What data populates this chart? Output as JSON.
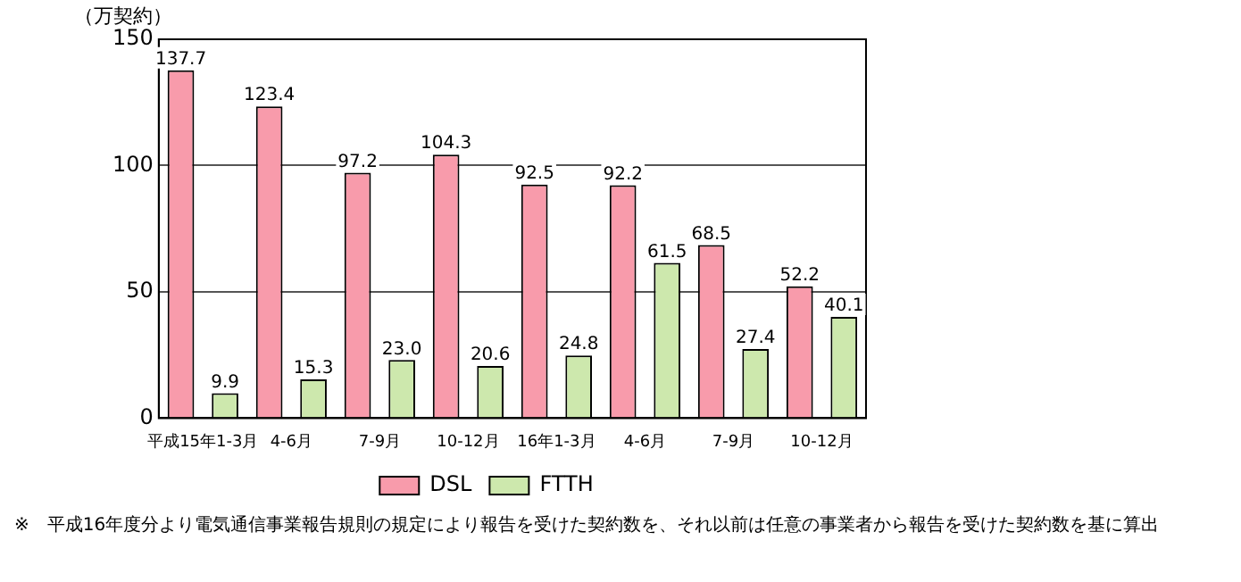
{
  "chart_data": {
    "type": "bar",
    "ylabel": "（万契約）",
    "categories": [
      "平成15年1-3月",
      "4-6月",
      "7-9月",
      "10-12月",
      "16年1-3月",
      "4-6月",
      "7-9月",
      "10-12月"
    ],
    "series": [
      {
        "name": "DSL",
        "color": "#f89bab",
        "values": [
          137.7,
          123.4,
          97.2,
          104.3,
          92.5,
          92.2,
          68.5,
          52.2
        ],
        "value_labels": [
          "137.7",
          "123.4",
          "97.2",
          "104.3",
          "92.5",
          "92.2",
          "68.5",
          "52.2"
        ]
      },
      {
        "name": "FTTH",
        "color": "#cde8ad",
        "values": [
          9.9,
          15.3,
          23.0,
          20.6,
          24.8,
          61.5,
          27.4,
          40.1
        ],
        "value_labels": [
          "9.9",
          "15.3",
          "23.0",
          "20.6",
          "24.8",
          "61.5",
          "27.4",
          "40.1"
        ]
      }
    ],
    "ylim": [
      0,
      150
    ],
    "yticks": [
      0,
      50,
      100,
      150
    ],
    "grid": "y",
    "legend": "bottom",
    "annotations": [
      "※　平成16年度分より電気通信事業報告規則の規定により報告を受けた契約数を、それ以前は任意の事業者から報告を受けた契約数を基に算出"
    ]
  }
}
